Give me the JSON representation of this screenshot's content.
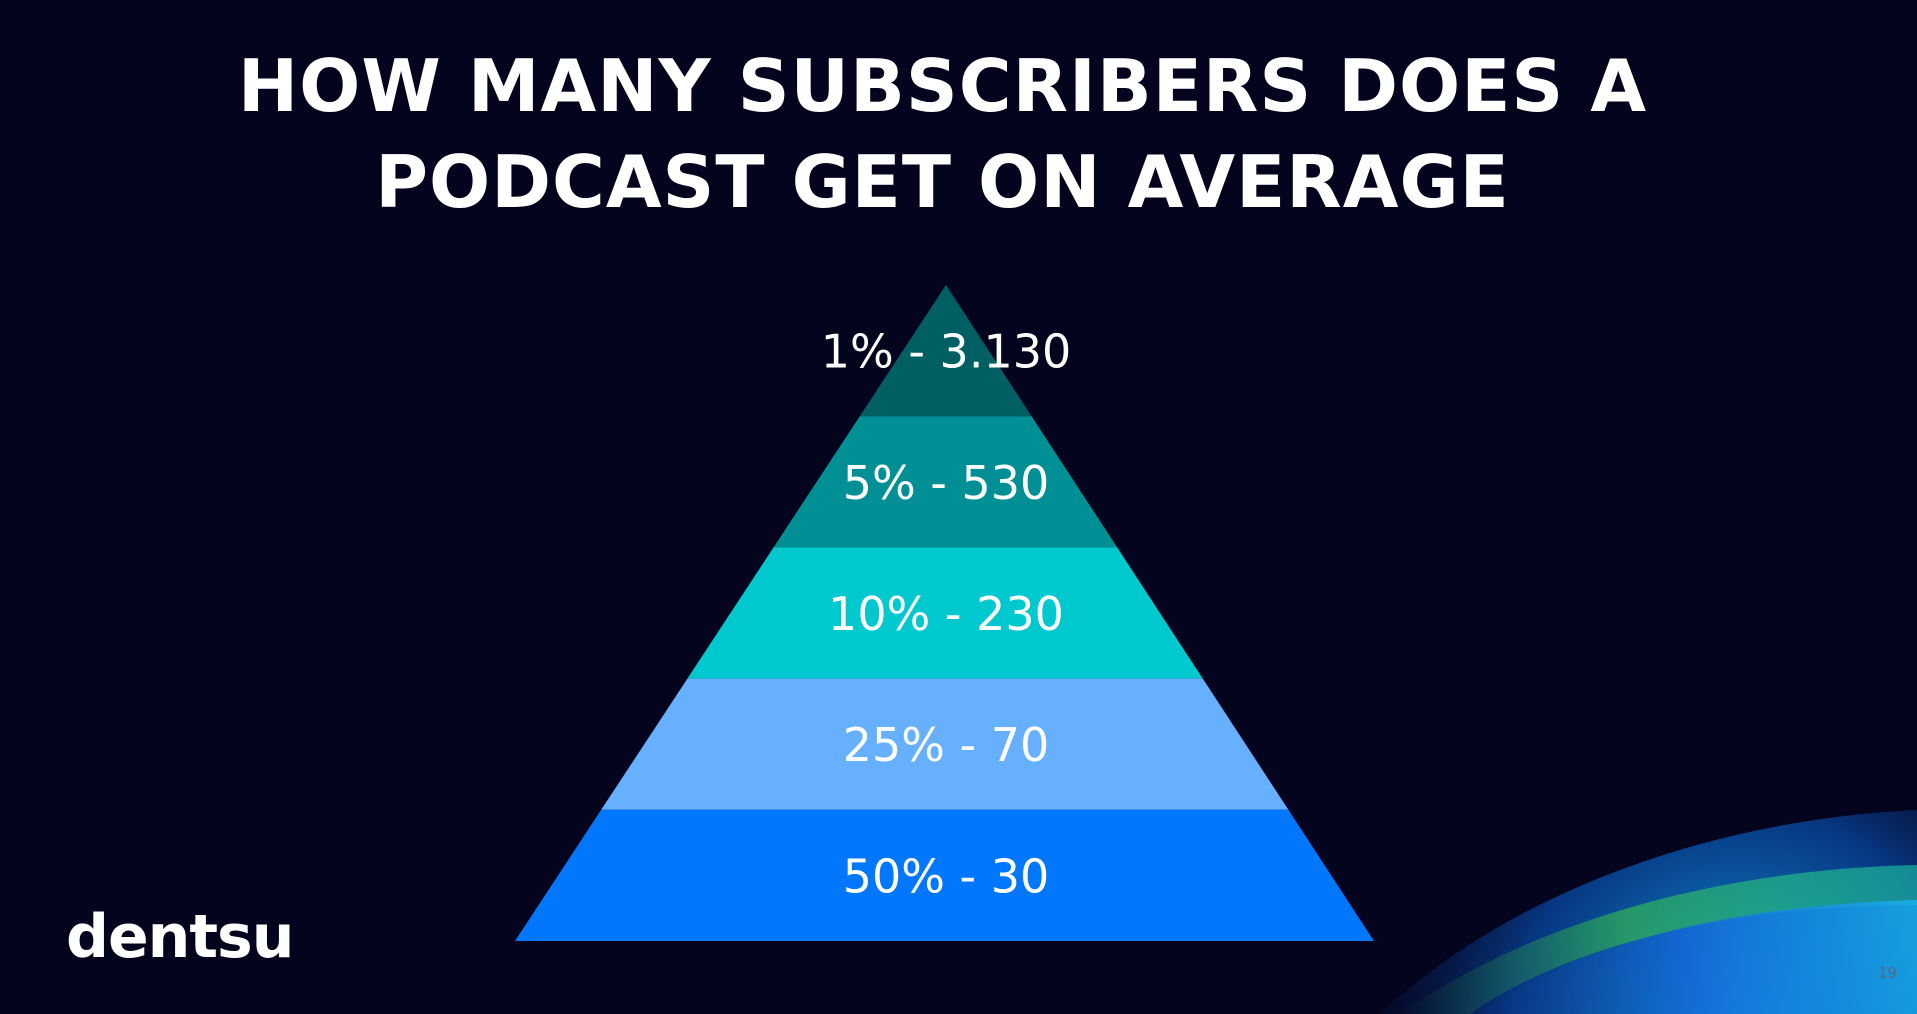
{
  "slide": {
    "title_lines": [
      "HOW MANY SUBSCRIBERS DOES A",
      "PODCAST GET ON AVERAGE"
    ],
    "logo_text": "dentsu",
    "page_number": "19",
    "background_color": "#04041f"
  },
  "pyramid": {
    "tiers": [
      {
        "label": "1% - 3.130",
        "color": "#005f63"
      },
      {
        "label": "5% - 530",
        "color": "#008f95"
      },
      {
        "label": "10% - 230",
        "color": "#00c8cf"
      },
      {
        "label": "25% - 70",
        "color": "#66b0ff"
      },
      {
        "label": "50% - 30",
        "color": "#0077fd"
      }
    ]
  }
}
